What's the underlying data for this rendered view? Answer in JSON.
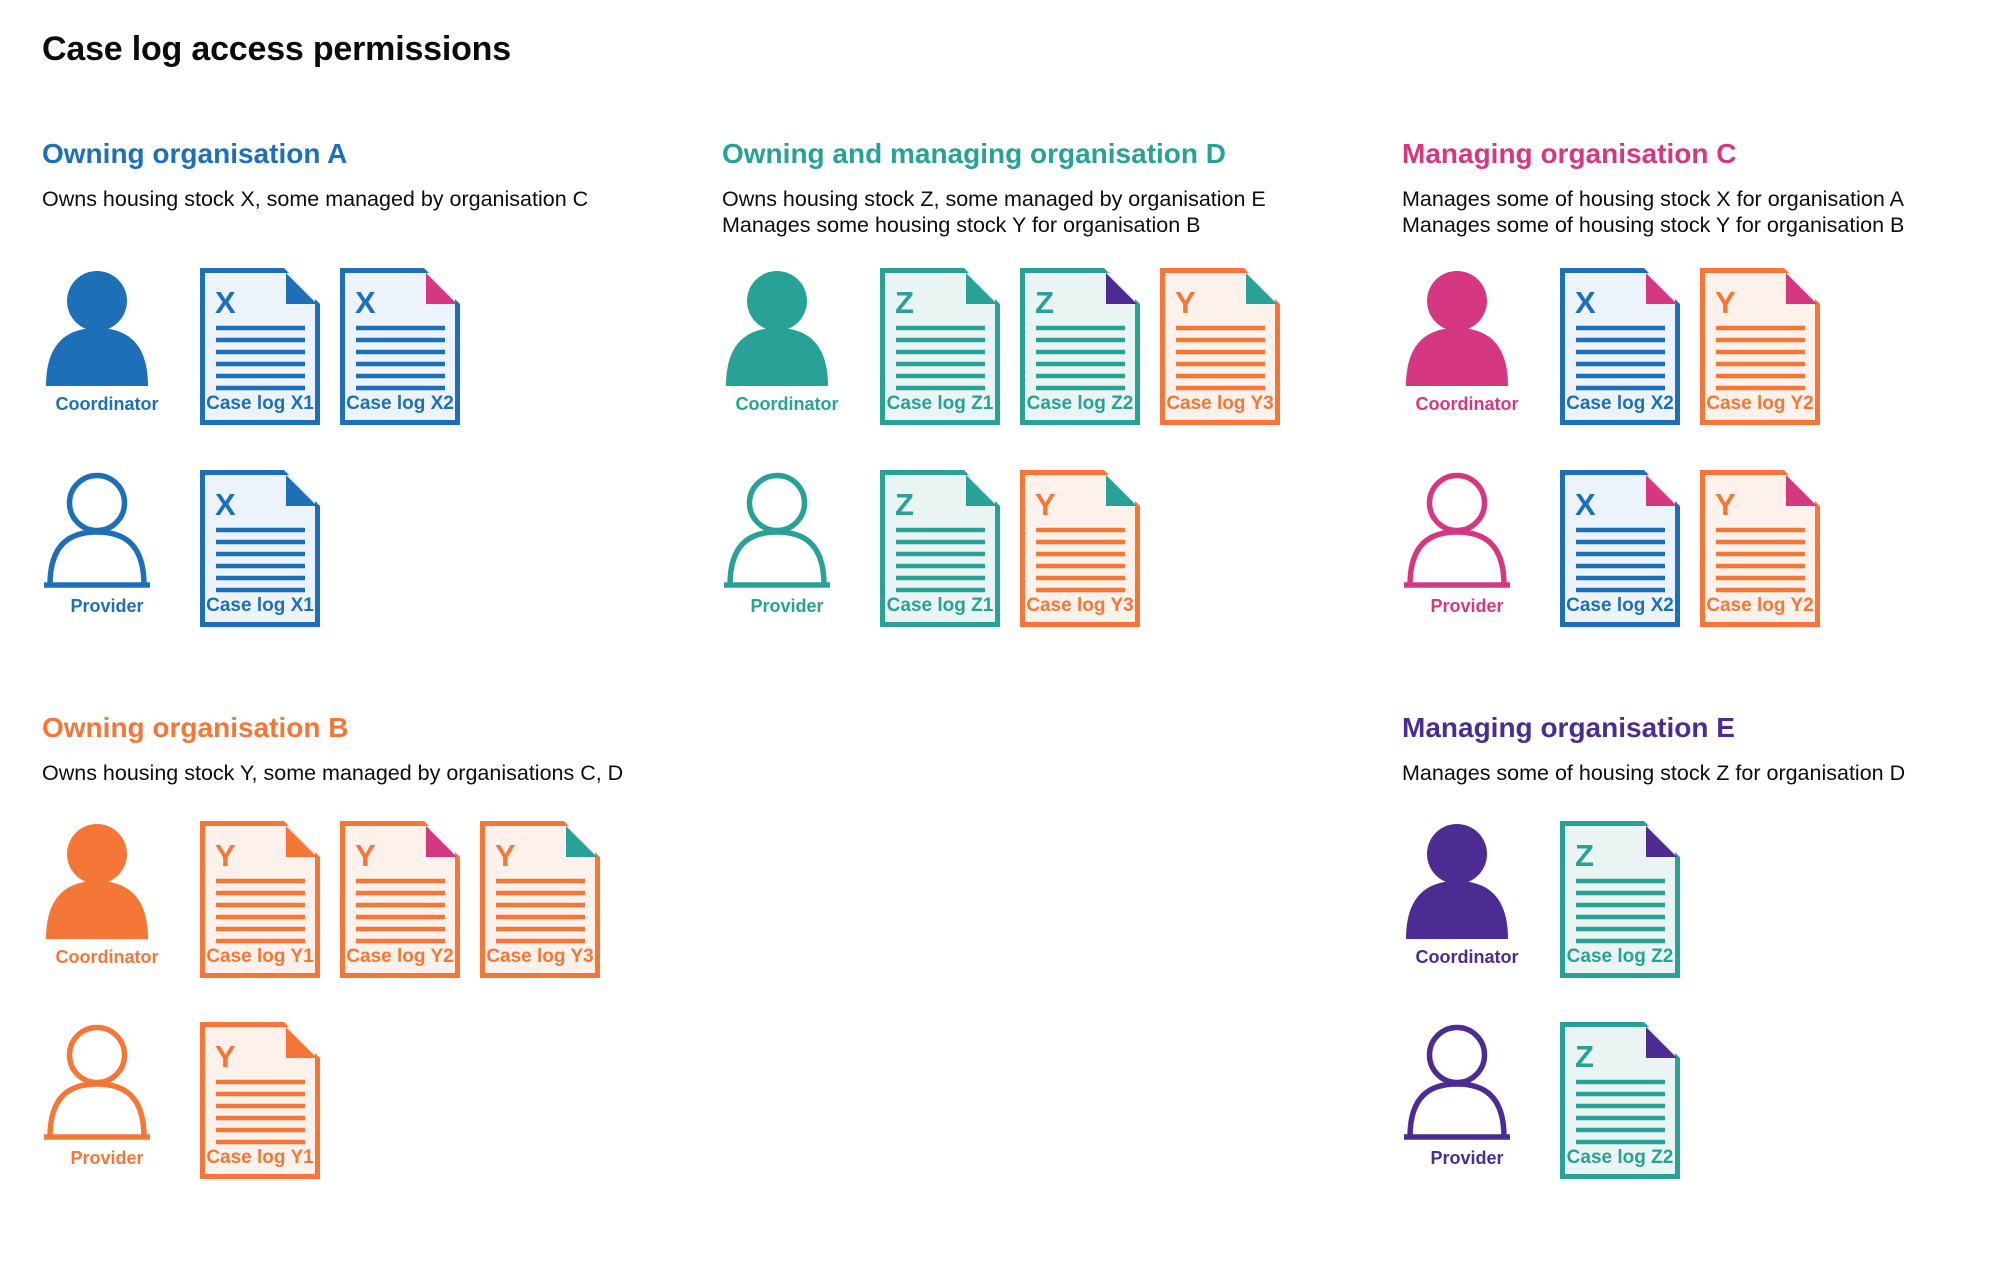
{
  "page_title": "Case log access permissions",
  "colors": {
    "blue": "#1d70b8",
    "teal": "#28a197",
    "pink": "#d53880",
    "orange": "#f47738",
    "purple": "#4c2c92",
    "text": "#0b0c0c",
    "background": "#ffffff"
  },
  "doc_backgrounds": {
    "blue": "#edf3fa",
    "teal": "#eaf4f2",
    "orange": "#fdf2eb"
  },
  "organisations": [
    {
      "id": "A",
      "title": "Owning organisation A",
      "color": "blue",
      "column": 1,
      "grid_row": 1,
      "description_lines": [
        "Owns housing stock X, some managed by organisation C"
      ],
      "coordinator": {
        "label": "Coordinator",
        "icon": "person-filled",
        "case_logs": [
          {
            "letter": "X",
            "label": "Case log X1",
            "doc_color": "blue",
            "fold_color": "blue"
          },
          {
            "letter": "X",
            "label": "Case log X2",
            "doc_color": "blue",
            "fold_color": "pink"
          }
        ]
      },
      "provider": {
        "label": "Provider",
        "icon": "person-outline",
        "case_logs": [
          {
            "letter": "X",
            "label": "Case log X1",
            "doc_color": "blue",
            "fold_color": "blue"
          }
        ]
      }
    },
    {
      "id": "D",
      "title": "Owning and managing organisation D",
      "color": "teal",
      "column": 2,
      "grid_row": 1,
      "description_lines": [
        "Owns housing stock Z, some managed by organisation E",
        "Manages some housing stock Y for organisation B"
      ],
      "coordinator": {
        "label": "Coordinator",
        "icon": "person-filled",
        "case_logs": [
          {
            "letter": "Z",
            "label": "Case log Z1",
            "doc_color": "teal",
            "fold_color": "teal"
          },
          {
            "letter": "Z",
            "label": "Case log Z2",
            "doc_color": "teal",
            "fold_color": "purple"
          },
          {
            "letter": "Y",
            "label": "Case log Y3",
            "doc_color": "orange",
            "fold_color": "teal"
          }
        ]
      },
      "provider": {
        "label": "Provider",
        "icon": "person-outline",
        "case_logs": [
          {
            "letter": "Z",
            "label": "Case log Z1",
            "doc_color": "teal",
            "fold_color": "teal"
          },
          {
            "letter": "Y",
            "label": "Case log Y3",
            "doc_color": "orange",
            "fold_color": "teal"
          }
        ]
      }
    },
    {
      "id": "C",
      "title": "Managing organisation C",
      "color": "pink",
      "column": 3,
      "grid_row": 1,
      "description_lines": [
        "Manages some of housing stock X for organisation A",
        "Manages some of housing stock Y for organisation B"
      ],
      "coordinator": {
        "label": "Coordinator",
        "icon": "person-filled",
        "case_logs": [
          {
            "letter": "X",
            "label": "Case log X2",
            "doc_color": "blue",
            "fold_color": "pink"
          },
          {
            "letter": "Y",
            "label": "Case log Y2",
            "doc_color": "orange",
            "fold_color": "pink"
          }
        ]
      },
      "provider": {
        "label": "Provider",
        "icon": "person-outline",
        "case_logs": [
          {
            "letter": "X",
            "label": "Case log X2",
            "doc_color": "blue",
            "fold_color": "pink"
          },
          {
            "letter": "Y",
            "label": "Case log Y2",
            "doc_color": "orange",
            "fold_color": "pink"
          }
        ]
      }
    },
    {
      "id": "B",
      "title": "Owning organisation B",
      "color": "orange",
      "column": 1,
      "grid_row": 2,
      "description_lines": [
        "Owns housing stock Y, some managed by organisations C, D"
      ],
      "coordinator": {
        "label": "Coordinator",
        "icon": "person-filled",
        "case_logs": [
          {
            "letter": "Y",
            "label": "Case log Y1",
            "doc_color": "orange",
            "fold_color": "orange"
          },
          {
            "letter": "Y",
            "label": "Case log Y2",
            "doc_color": "orange",
            "fold_color": "pink"
          },
          {
            "letter": "Y",
            "label": "Case log Y3",
            "doc_color": "orange",
            "fold_color": "teal"
          }
        ]
      },
      "provider": {
        "label": "Provider",
        "icon": "person-outline",
        "case_logs": [
          {
            "letter": "Y",
            "label": "Case log Y1",
            "doc_color": "orange",
            "fold_color": "orange"
          }
        ]
      }
    },
    {
      "id": "E",
      "title": "Managing organisation E",
      "color": "purple",
      "column": 3,
      "grid_row": 2,
      "description_lines": [
        "Manages some of housing stock Z for organisation D"
      ],
      "coordinator": {
        "label": "Coordinator",
        "icon": "person-filled",
        "case_logs": [
          {
            "letter": "Z",
            "label": "Case log Z2",
            "doc_color": "teal",
            "fold_color": "purple"
          }
        ]
      },
      "provider": {
        "label": "Provider",
        "icon": "person-outline",
        "case_logs": [
          {
            "letter": "Z",
            "label": "Case log Z2",
            "doc_color": "teal",
            "fold_color": "purple"
          }
        ]
      }
    }
  ]
}
